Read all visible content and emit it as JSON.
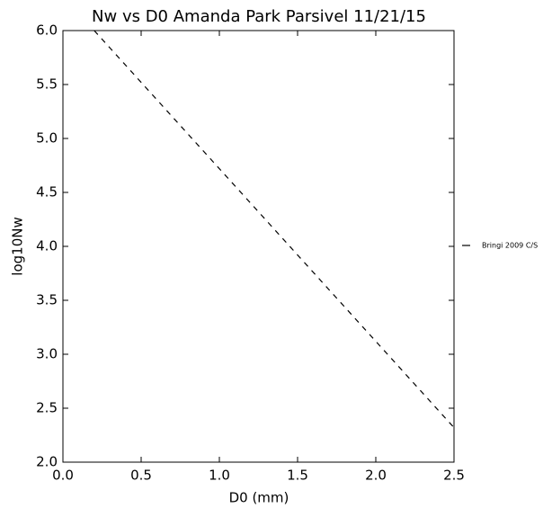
{
  "chart_data": {
    "type": "line",
    "title": "Nw vs D0 Amanda Park Parsivel 11/21/15",
    "x_label": "D0 (mm)",
    "y_label": "log10Nw",
    "x": [
      0.2,
      2.5
    ],
    "series": [
      {
        "name": "Bringi 2009 C/S",
        "color": "#000000",
        "dashed": true,
        "values": [
          6.0,
          2.32
        ]
      }
    ],
    "xlim": [
      0.0,
      2.5
    ],
    "xticks": [
      {
        "value": 0,
        "label": "0.0"
      },
      0.5,
      {
        "value": 1,
        "label": "1.0"
      },
      1.5,
      {
        "value": 2,
        "label": "2.0"
      },
      2.5
    ],
    "ylim": [
      2.0,
      6.0
    ],
    "yticks": [
      {
        "value": 2,
        "label": "2.0"
      },
      2.5,
      {
        "value": 3,
        "label": "3.0"
      },
      3.5,
      {
        "value": 4,
        "label": "4.0"
      },
      4.5,
      {
        "value": 5,
        "label": "5.0"
      },
      5.5,
      {
        "value": 6,
        "label": "6.0"
      }
    ],
    "grid": false,
    "legend": "outside-right"
  }
}
